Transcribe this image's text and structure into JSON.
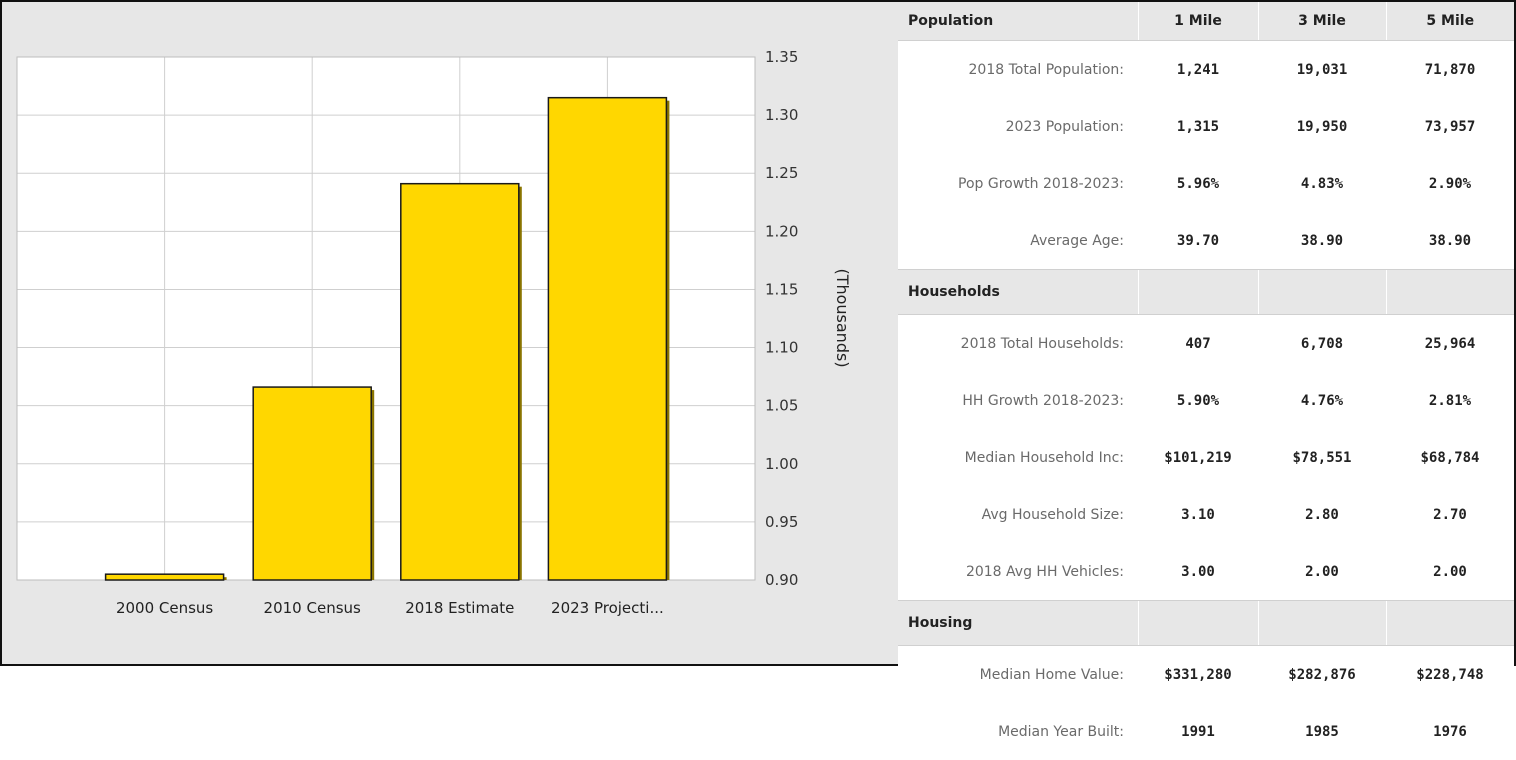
{
  "chart_data": {
    "type": "bar",
    "categories": [
      "2000 Census",
      "2010 Census",
      "2018 Estimate",
      "2023 Projecti..."
    ],
    "values": [
      0.905,
      1.066,
      1.241,
      1.315
    ],
    "ylabel": "(Thousands)",
    "ylim": [
      0.9,
      1.35
    ],
    "yticks": [
      "1.35",
      "1.30",
      "1.25",
      "1.20",
      "1.15",
      "1.10",
      "1.05",
      "1.00",
      "0.95",
      "0.90"
    ],
    "ytick_values": [
      1.35,
      1.3,
      1.25,
      1.2,
      1.15,
      1.1,
      1.05,
      1.0,
      0.95,
      0.9
    ],
    "grid": true,
    "y_axis_side": "right",
    "bar_color": "#FFD700"
  },
  "table": {
    "columns": [
      "1 Mile",
      "3 Mile",
      "5 Mile"
    ],
    "sections": [
      {
        "title": "Population",
        "rows": [
          {
            "label": "2018 Total Population:",
            "values": [
              "1,241",
              "19,031",
              "71,870"
            ]
          },
          {
            "label": "2023 Population:",
            "values": [
              "1,315",
              "19,950",
              "73,957"
            ]
          },
          {
            "label": "Pop Growth 2018-2023:",
            "values": [
              "5.96%",
              "4.83%",
              "2.90%"
            ]
          },
          {
            "label": "Average Age:",
            "values": [
              "39.70",
              "38.90",
              "38.90"
            ]
          }
        ]
      },
      {
        "title": "Households",
        "rows": [
          {
            "label": "2018 Total Households:",
            "values": [
              "407",
              "6,708",
              "25,964"
            ]
          },
          {
            "label": "HH Growth 2018-2023:",
            "values": [
              "5.90%",
              "4.76%",
              "2.81%"
            ]
          },
          {
            "label": "Median Household Inc:",
            "values": [
              "$101,219",
              "$78,551",
              "$68,784"
            ]
          },
          {
            "label": "Avg Household Size:",
            "values": [
              "3.10",
              "2.80",
              "2.70"
            ]
          },
          {
            "label": "2018 Avg HH Vehicles:",
            "values": [
              "3.00",
              "2.00",
              "2.00"
            ]
          }
        ]
      },
      {
        "title": "Housing",
        "rows": [
          {
            "label": "Median Home Value:",
            "values": [
              "$331,280",
              "$282,876",
              "$228,748"
            ]
          },
          {
            "label": "Median Year Built:",
            "values": [
              "1991",
              "1985",
              "1976"
            ]
          }
        ]
      }
    ]
  }
}
